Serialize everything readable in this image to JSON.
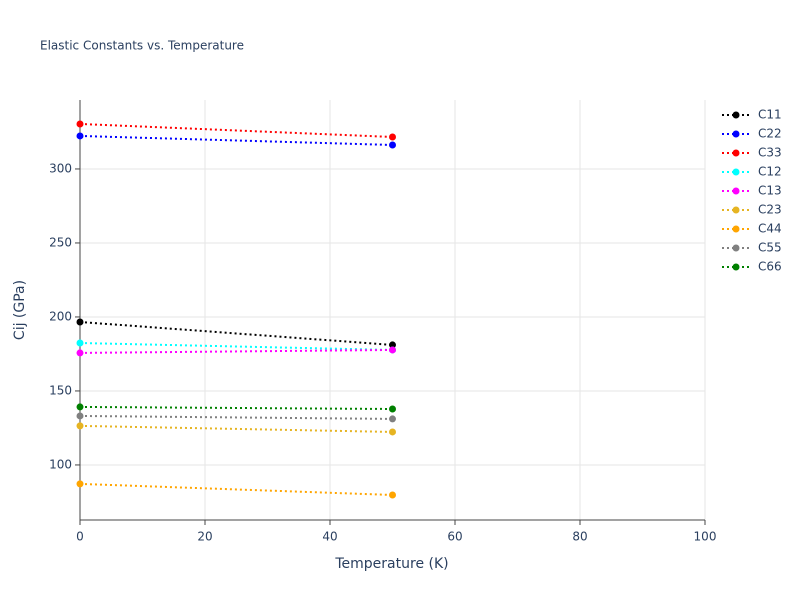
{
  "chart_data": {
    "type": "line",
    "title": "Elastic Constants vs. Temperature",
    "x_label": "Temperature (K)",
    "y_label": "Cij (GPa)",
    "x": [
      0,
      50
    ],
    "series": [
      {
        "name": "C11",
        "color": "#000000",
        "values": [
          196.6,
          181.1
        ]
      },
      {
        "name": "C22",
        "color": "#0000ff",
        "values": [
          322.3,
          316.2
        ]
      },
      {
        "name": "C33",
        "color": "#ff0000",
        "values": [
          330.4,
          321.6
        ]
      },
      {
        "name": "C12",
        "color": "#00ffff",
        "values": [
          182.4,
          177.7
        ]
      },
      {
        "name": "C13",
        "color": "#ff00ff",
        "values": [
          175.7,
          177.7
        ]
      },
      {
        "name": "C23",
        "color": "#e6b422",
        "values": [
          126.4,
          122.3
        ]
      },
      {
        "name": "C44",
        "color": "#ffa500",
        "values": [
          87.2,
          79.7
        ]
      },
      {
        "name": "C55",
        "color": "#808080",
        "values": [
          133.1,
          131.1
        ]
      },
      {
        "name": "C66",
        "color": "#008000",
        "values": [
          139.2,
          137.8
        ]
      }
    ],
    "xlim": [
      0,
      100
    ],
    "xticks": [
      0,
      20,
      40,
      60,
      80,
      100
    ],
    "ylim": [
      62.8,
      346.6
    ],
    "yticks": [
      100,
      150,
      200,
      250,
      300
    ],
    "grid": true,
    "legend": "right"
  }
}
